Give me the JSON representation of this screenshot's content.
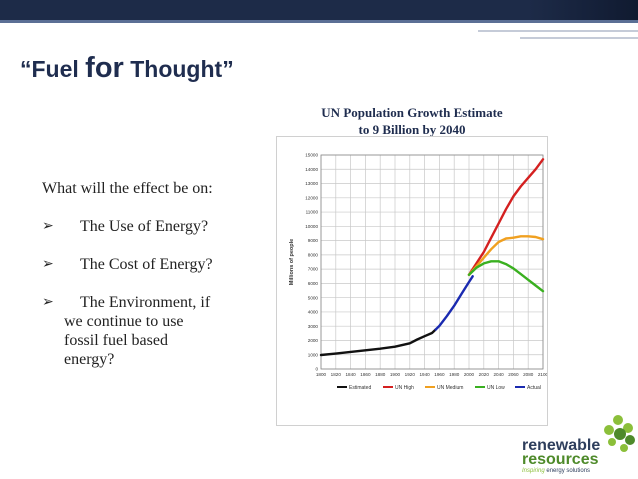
{
  "slide": {
    "title_part1": "“Fuel ",
    "title_part2": "for",
    "title_part3": " Thought”",
    "chart_heading_line1": "UN Population Growth Estimate",
    "chart_heading_line2": "to 9 Billion by 2040",
    "intro": "What will the effect be on:",
    "bullets": [
      "The Use of Energy?",
      "The Cost of Energy?",
      "The Environment, if"
    ],
    "bullet3_continuation": [
      "we continue to use",
      "fossil fuel based",
      "energy?"
    ],
    "bullet_arrow": "➢"
  },
  "logo": {
    "line1": "renewable",
    "line2": "resources",
    "tagline_italic": "Inspiring",
    "tagline_rest": " energy solutions",
    "colors": {
      "text": "#2e3e5c",
      "green": "#8bbf3a",
      "darkgreen": "#4e8a2a"
    }
  },
  "chart_data": {
    "type": "line",
    "ylabel": "Millions of people",
    "xlabel": "",
    "xlim": [
      1800,
      2100
    ],
    "ylim": [
      0,
      15000
    ],
    "x_ticks": [
      1800,
      1820,
      1840,
      1860,
      1880,
      1900,
      1920,
      1940,
      1960,
      1980,
      2000,
      2020,
      2040,
      2060,
      2080,
      2100
    ],
    "y_ticks": [
      0,
      1000,
      2000,
      3000,
      4000,
      5000,
      6000,
      7000,
      8000,
      9000,
      10000,
      11000,
      12000,
      13000,
      14000,
      15000
    ],
    "series": [
      {
        "name": "Estimated",
        "color": "#111111",
        "points": [
          [
            1800,
            980
          ],
          [
            1820,
            1080
          ],
          [
            1840,
            1200
          ],
          [
            1860,
            1310
          ],
          [
            1880,
            1420
          ],
          [
            1900,
            1560
          ],
          [
            1920,
            1800
          ],
          [
            1930,
            2070
          ],
          [
            1940,
            2300
          ],
          [
            1950,
            2520
          ],
          [
            1955,
            2770
          ]
        ]
      },
      {
        "name": "UN High",
        "color": "#d42020",
        "points": [
          [
            2000,
            6600
          ],
          [
            2010,
            7400
          ],
          [
            2020,
            8200
          ],
          [
            2030,
            9200
          ],
          [
            2040,
            10200
          ],
          [
            2050,
            11200
          ],
          [
            2060,
            12100
          ],
          [
            2070,
            12800
          ],
          [
            2080,
            13400
          ],
          [
            2090,
            14000
          ],
          [
            2100,
            14700
          ]
        ]
      },
      {
        "name": "UN Medium",
        "color": "#f0a020",
        "points": [
          [
            2000,
            6600
          ],
          [
            2010,
            7200
          ],
          [
            2020,
            7800
          ],
          [
            2030,
            8400
          ],
          [
            2040,
            8900
          ],
          [
            2050,
            9150
          ],
          [
            2060,
            9200
          ],
          [
            2070,
            9300
          ],
          [
            2080,
            9300
          ],
          [
            2090,
            9250
          ],
          [
            2100,
            9100
          ]
        ]
      },
      {
        "name": "UN Low",
        "color": "#3ab020",
        "points": [
          [
            2000,
            6600
          ],
          [
            2010,
            7100
          ],
          [
            2020,
            7400
          ],
          [
            2030,
            7550
          ],
          [
            2040,
            7550
          ],
          [
            2050,
            7350
          ],
          [
            2060,
            7050
          ],
          [
            2070,
            6650
          ],
          [
            2080,
            6250
          ],
          [
            2090,
            5850
          ],
          [
            2100,
            5450
          ]
        ]
      },
      {
        "name": "Actual",
        "color": "#1a2ab0",
        "points": [
          [
            1955,
            2770
          ],
          [
            1960,
            3020
          ],
          [
            1970,
            3700
          ],
          [
            1980,
            4440
          ],
          [
            1990,
            5280
          ],
          [
            2000,
            6100
          ],
          [
            2005,
            6500
          ]
        ]
      }
    ]
  }
}
